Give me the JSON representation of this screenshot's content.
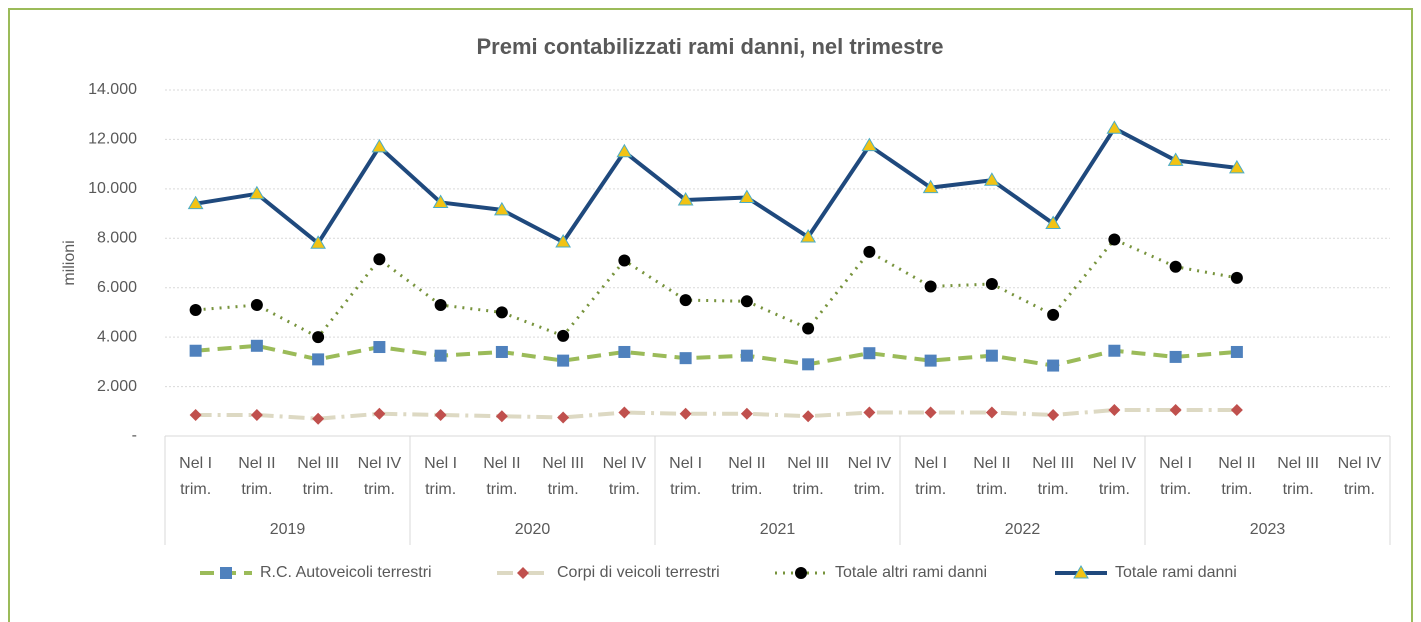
{
  "chart_data": {
    "type": "line",
    "title": "Premi contabilizzati rami danni, nel trimestre",
    "y_label": "milioni",
    "categories": [
      "Nel I trim.",
      "Nel II trim.",
      "Nel III trim.",
      "Nel IV trim.",
      "Nel I trim.",
      "Nel II trim.",
      "Nel III trim.",
      "Nel IV trim.",
      "Nel I trim.",
      "Nel II trim.",
      "Nel III trim.",
      "Nel IV trim.",
      "Nel I trim.",
      "Nel II trim.",
      "Nel III trim.",
      "Nel IV trim.",
      "Nel I trim.",
      "Nel II trim.",
      "Nel III trim.",
      "Nel IV trim."
    ],
    "x_groups": [
      "2019",
      "2020",
      "2021",
      "2022",
      "2023"
    ],
    "ylim": [
      0,
      14000
    ],
    "yticks": [
      {
        "value": 0,
        "label": "-"
      },
      {
        "value": 2000,
        "label": "2.000"
      },
      {
        "value": 4000,
        "label": "4.000"
      },
      {
        "value": 6000,
        "label": "6.000"
      },
      {
        "value": 8000,
        "label": "8.000"
      },
      {
        "value": 10000,
        "label": "10.000"
      },
      {
        "value": 12000,
        "label": "12.000"
      },
      {
        "value": 14000,
        "label": "14.000"
      }
    ],
    "grid": true,
    "legend": "bottom",
    "series": [
      {
        "name": "R.C. Autoveicoli terrestri",
        "color": "#9bbb59",
        "marker": "square",
        "marker_color": "#4f81bd",
        "dash": "dashed",
        "values": [
          3450,
          3650,
          3100,
          3600,
          3250,
          3400,
          3050,
          3400,
          3150,
          3250,
          2900,
          3350,
          3050,
          3250,
          2850,
          3450,
          3200,
          3400,
          null,
          null
        ]
      },
      {
        "name": "Corpi di veicoli terrestri",
        "color": "#ddd9c3",
        "marker": "diamond",
        "marker_color": "#c0504d",
        "dash": "dashdot",
        "values": [
          850,
          850,
          700,
          900,
          850,
          800,
          750,
          950,
          900,
          900,
          800,
          950,
          950,
          950,
          850,
          1050,
          1050,
          1050,
          null,
          null
        ]
      },
      {
        "name": "Totale altri rami danni",
        "color": "#77933c",
        "marker": "circle",
        "marker_color": "#000000",
        "dash": "dotted",
        "values": [
          5100,
          5300,
          4000,
          7150,
          5300,
          5000,
          4050,
          7100,
          5500,
          5450,
          4350,
          7450,
          6050,
          6150,
          4900,
          7950,
          6850,
          6400,
          null,
          null
        ]
      },
      {
        "name": "Totale rami danni",
        "color": "#1f497d",
        "marker": "triangle",
        "marker_color": "#f2c314",
        "dash": "solid",
        "values": [
          9400,
          9800,
          7800,
          11700,
          9450,
          9150,
          7850,
          11500,
          9550,
          9650,
          8050,
          11750,
          10050,
          10350,
          8600,
          12450,
          11150,
          10850,
          null,
          null
        ]
      }
    ]
  }
}
